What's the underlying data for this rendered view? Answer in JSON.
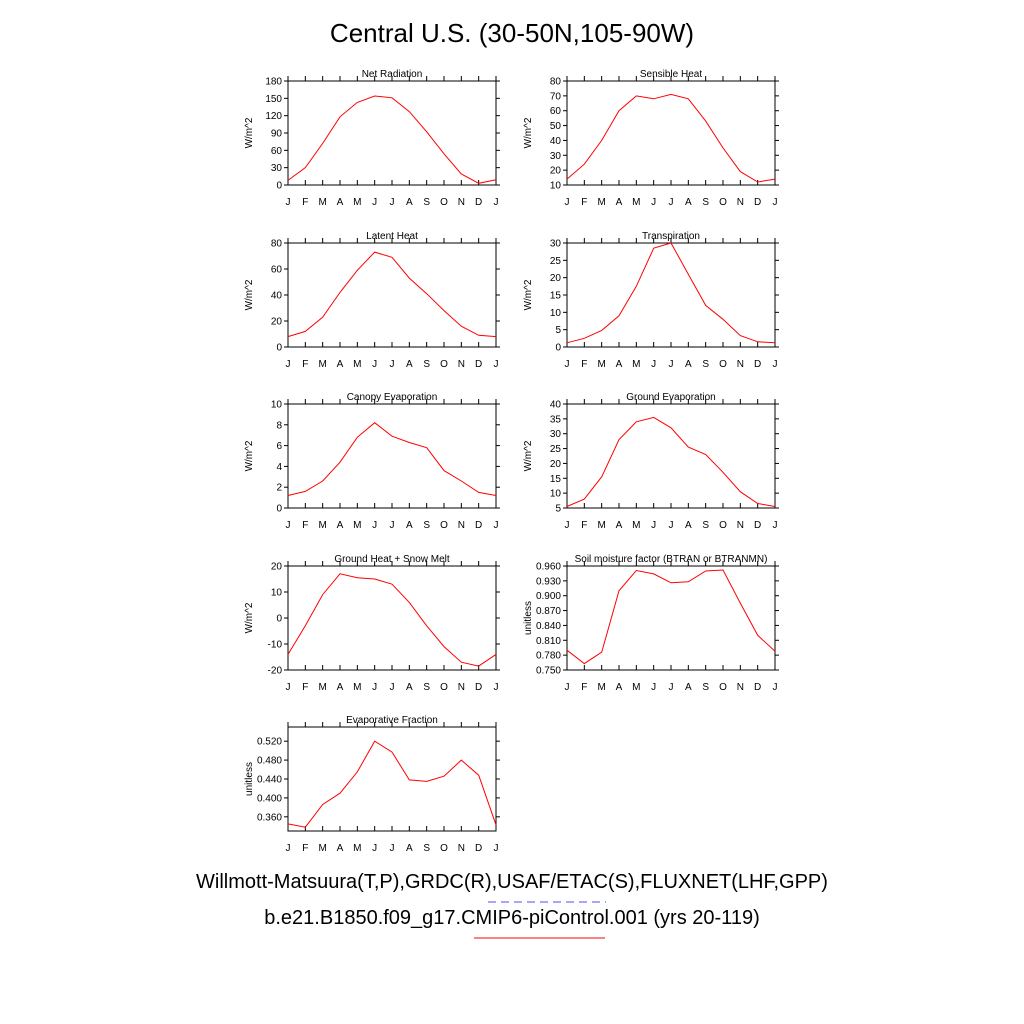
{
  "title": "Central U.S. (30-50N,105-90W)",
  "footer": {
    "line1": "Willmott-Matsuura(T,P),GRDC(R),USAF/ETAC(S),FLUXNET(LHF,GPP)",
    "line2": "b.e21.B1850.f09_g17.CMIP6-piControl.001 (yrs 20-119)"
  },
  "colors": {
    "series": "#ff0000",
    "obs_dash": "#4d4dff",
    "axis": "#000000"
  },
  "chart_data": [
    {
      "type": "line",
      "title": "Net Radiation",
      "ylabel": "W/m^2",
      "x": [
        "J",
        "F",
        "M",
        "A",
        "M",
        "J",
        "J",
        "A",
        "S",
        "O",
        "N",
        "D",
        "J"
      ],
      "ylim": [
        0,
        180
      ],
      "yticks": [
        "0",
        "30",
        "60",
        "90",
        "120",
        "150",
        "180"
      ],
      "values": [
        8,
        30,
        72,
        118,
        143,
        154,
        151,
        127,
        92,
        54,
        19,
        3,
        9
      ]
    },
    {
      "type": "line",
      "title": "Sensible Heat",
      "ylabel": "W/m^2",
      "x": [
        "J",
        "F",
        "M",
        "A",
        "M",
        "J",
        "J",
        "A",
        "S",
        "O",
        "N",
        "D",
        "J"
      ],
      "ylim": [
        10,
        80
      ],
      "yticks": [
        "10",
        "20",
        "30",
        "40",
        "50",
        "60",
        "70",
        "80"
      ],
      "values": [
        14,
        24,
        40,
        60,
        70,
        68,
        71,
        68,
        53,
        35,
        19,
        12,
        14
      ]
    },
    {
      "type": "line",
      "title": "Latent Heat",
      "ylabel": "W/m^2",
      "x": [
        "J",
        "F",
        "M",
        "A",
        "M",
        "J",
        "J",
        "A",
        "S",
        "O",
        "N",
        "D",
        "J"
      ],
      "ylim": [
        0,
        80
      ],
      "yticks": [
        "0",
        "20",
        "40",
        "60",
        "80"
      ],
      "values": [
        8,
        12,
        23,
        42,
        59,
        73,
        69,
        53,
        41,
        28,
        16,
        9,
        8
      ]
    },
    {
      "type": "line",
      "title": "Transpiration",
      "ylabel": "W/m^2",
      "x": [
        "J",
        "F",
        "M",
        "A",
        "M",
        "J",
        "J",
        "A",
        "S",
        "O",
        "N",
        "D",
        "J"
      ],
      "ylim": [
        0,
        30
      ],
      "yticks": [
        "0",
        "5",
        "10",
        "15",
        "20",
        "25",
        "30"
      ],
      "values": [
        1.2,
        2.5,
        4.8,
        9,
        17.5,
        28.5,
        30,
        21,
        12,
        8,
        3.3,
        1.5,
        1.2
      ]
    },
    {
      "type": "line",
      "title": "Canopy Evaporation",
      "ylabel": "W/m^2",
      "x": [
        "J",
        "F",
        "M",
        "A",
        "M",
        "J",
        "J",
        "A",
        "S",
        "O",
        "N",
        "D",
        "J"
      ],
      "ylim": [
        0,
        10
      ],
      "yticks": [
        "0",
        "2",
        "4",
        "6",
        "8",
        "10"
      ],
      "values": [
        1.2,
        1.6,
        2.6,
        4.4,
        6.8,
        8.2,
        6.9,
        6.3,
        5.8,
        3.6,
        2.6,
        1.5,
        1.2
      ]
    },
    {
      "type": "line",
      "title": "Ground Evaporation",
      "ylabel": "W/m^2",
      "x": [
        "J",
        "F",
        "M",
        "A",
        "M",
        "J",
        "J",
        "A",
        "S",
        "O",
        "N",
        "D",
        "J"
      ],
      "ylim": [
        5,
        40
      ],
      "yticks": [
        "5",
        "10",
        "15",
        "20",
        "25",
        "30",
        "35",
        "40"
      ],
      "values": [
        5.5,
        8,
        15.5,
        28,
        34,
        35.5,
        32,
        25.5,
        23,
        17,
        10.5,
        6.5,
        5.5
      ]
    },
    {
      "type": "line",
      "title": "Ground Heat + Snow Melt",
      "ylabel": "W/m^2",
      "x": [
        "J",
        "F",
        "M",
        "A",
        "M",
        "J",
        "J",
        "A",
        "S",
        "O",
        "N",
        "D",
        "J"
      ],
      "ylim": [
        -20,
        20
      ],
      "yticks": [
        "-20",
        "-10",
        "0",
        "10",
        "20"
      ],
      "values": [
        -14,
        -3,
        9,
        17,
        15.5,
        15,
        13,
        6,
        -3,
        -11,
        -17,
        -18.5,
        -14
      ]
    },
    {
      "type": "line",
      "title": "Soil moisture factor (BTRAN or BTRANMN)",
      "ylabel": "unitless",
      "x": [
        "J",
        "F",
        "M",
        "A",
        "M",
        "J",
        "J",
        "A",
        "S",
        "O",
        "N",
        "D",
        "J"
      ],
      "ylim": [
        0.75,
        0.96
      ],
      "yticks": [
        "0.750",
        "0.780",
        "0.810",
        "0.840",
        "0.870",
        "0.900",
        "0.930",
        "0.960"
      ],
      "values": [
        0.79,
        0.763,
        0.786,
        0.91,
        0.951,
        0.944,
        0.926,
        0.928,
        0.95,
        0.952,
        0.885,
        0.82,
        0.788
      ]
    },
    {
      "type": "line",
      "title": "Evaporative Fraction",
      "ylabel": "unitless",
      "x": [
        "J",
        "F",
        "M",
        "A",
        "M",
        "J",
        "J",
        "A",
        "S",
        "O",
        "N",
        "D",
        "J"
      ],
      "ylim": [
        0.33,
        0.55
      ],
      "yticks": [
        "0.360",
        "0.400",
        "0.440",
        "0.480",
        "0.520"
      ],
      "values": [
        0.345,
        0.338,
        0.386,
        0.41,
        0.455,
        0.52,
        0.497,
        0.438,
        0.435,
        0.446,
        0.48,
        0.448,
        0.343
      ]
    }
  ]
}
